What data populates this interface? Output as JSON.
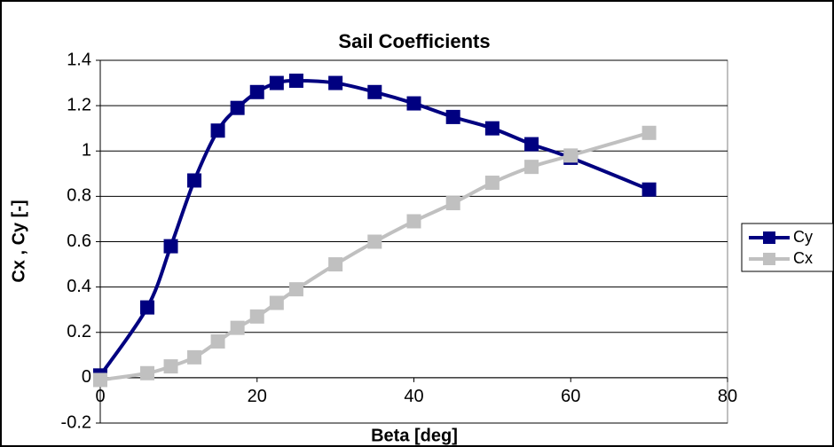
{
  "chart_data": {
    "type": "line",
    "title": "Sail Coefficients",
    "x_label": "Beta [deg]",
    "y_label": "Cx , Cy [-]",
    "x": [
      0,
      6,
      9,
      12,
      15,
      17.5,
      20,
      22.5,
      25,
      30,
      35,
      40,
      45,
      50,
      55,
      60,
      70
    ],
    "series": [
      {
        "name": "Cy",
        "color": "#000080",
        "values": [
          0.01,
          0.31,
          0.58,
          0.87,
          1.09,
          1.19,
          1.26,
          1.3,
          1.31,
          1.3,
          1.26,
          1.21,
          1.15,
          1.1,
          1.03,
          0.97,
          0.83
        ]
      },
      {
        "name": "Cx",
        "color": "#c0c0c0",
        "values": [
          -0.01,
          0.02,
          0.05,
          0.09,
          0.16,
          0.22,
          0.27,
          0.33,
          0.39,
          0.5,
          0.6,
          0.69,
          0.77,
          0.86,
          0.93,
          0.98,
          1.08
        ]
      }
    ],
    "xlim": [
      0,
      80
    ],
    "xticks": [
      0,
      20,
      40,
      60,
      80
    ],
    "ylim": [
      -0.2,
      1.4
    ],
    "yticks": [
      -0.2,
      0,
      0.2,
      0.4,
      0.6,
      0.8,
      1,
      1.2,
      1.4
    ],
    "grid": true,
    "legend": "right"
  }
}
